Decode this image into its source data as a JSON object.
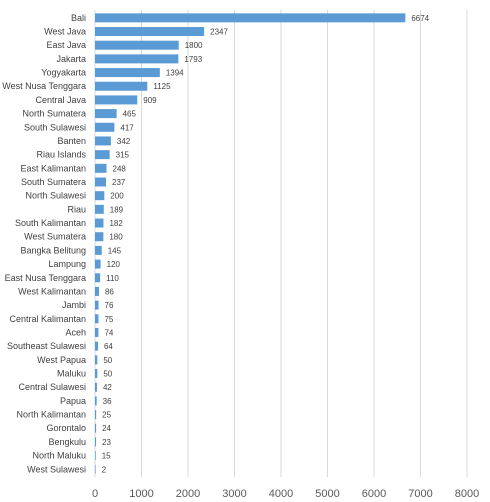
{
  "chart_data": {
    "type": "bar",
    "orientation": "horizontal",
    "categories": [
      "Bali",
      "West Java",
      "East Java",
      "Jakarta",
      "Yogyakarta",
      "West Nusa Tenggara",
      "Central Java",
      "North Sumatera",
      "South Sulawesi",
      "Banten",
      "Riau Islands",
      "East Kalimantan",
      "South Sumatera",
      "North Sulawesi",
      "Riau",
      "South Kalimantan",
      "West Sumatera",
      "Bangka Belitung",
      "Lampung",
      "East Nusa Tenggara",
      "West Kalimantan",
      "Jambi",
      "Central Kalimantan",
      "Aceh",
      "Southeast Sulawesi",
      "West Papua",
      "Maluku",
      "Central Sulawesi",
      "Papua",
      "North Kalimantan",
      "Gorontalo",
      "Bengkulu",
      "North Maluku",
      "West Sulawesi"
    ],
    "values": [
      6674,
      2347,
      1800,
      1793,
      1394,
      1125,
      909,
      465,
      417,
      342,
      315,
      248,
      237,
      200,
      189,
      182,
      180,
      145,
      120,
      110,
      86,
      76,
      75,
      74,
      64,
      50,
      50,
      42,
      36,
      25,
      24,
      23,
      15,
      2
    ],
    "xlim": [
      0,
      8000
    ],
    "xticks": [
      "0",
      "1000",
      "2000",
      "3000",
      "4000",
      "5000",
      "6000",
      "7000",
      "8000"
    ],
    "bar_color": "#5b9bd5",
    "grid": true,
    "title": "",
    "xlabel": "",
    "ylabel": ""
  }
}
